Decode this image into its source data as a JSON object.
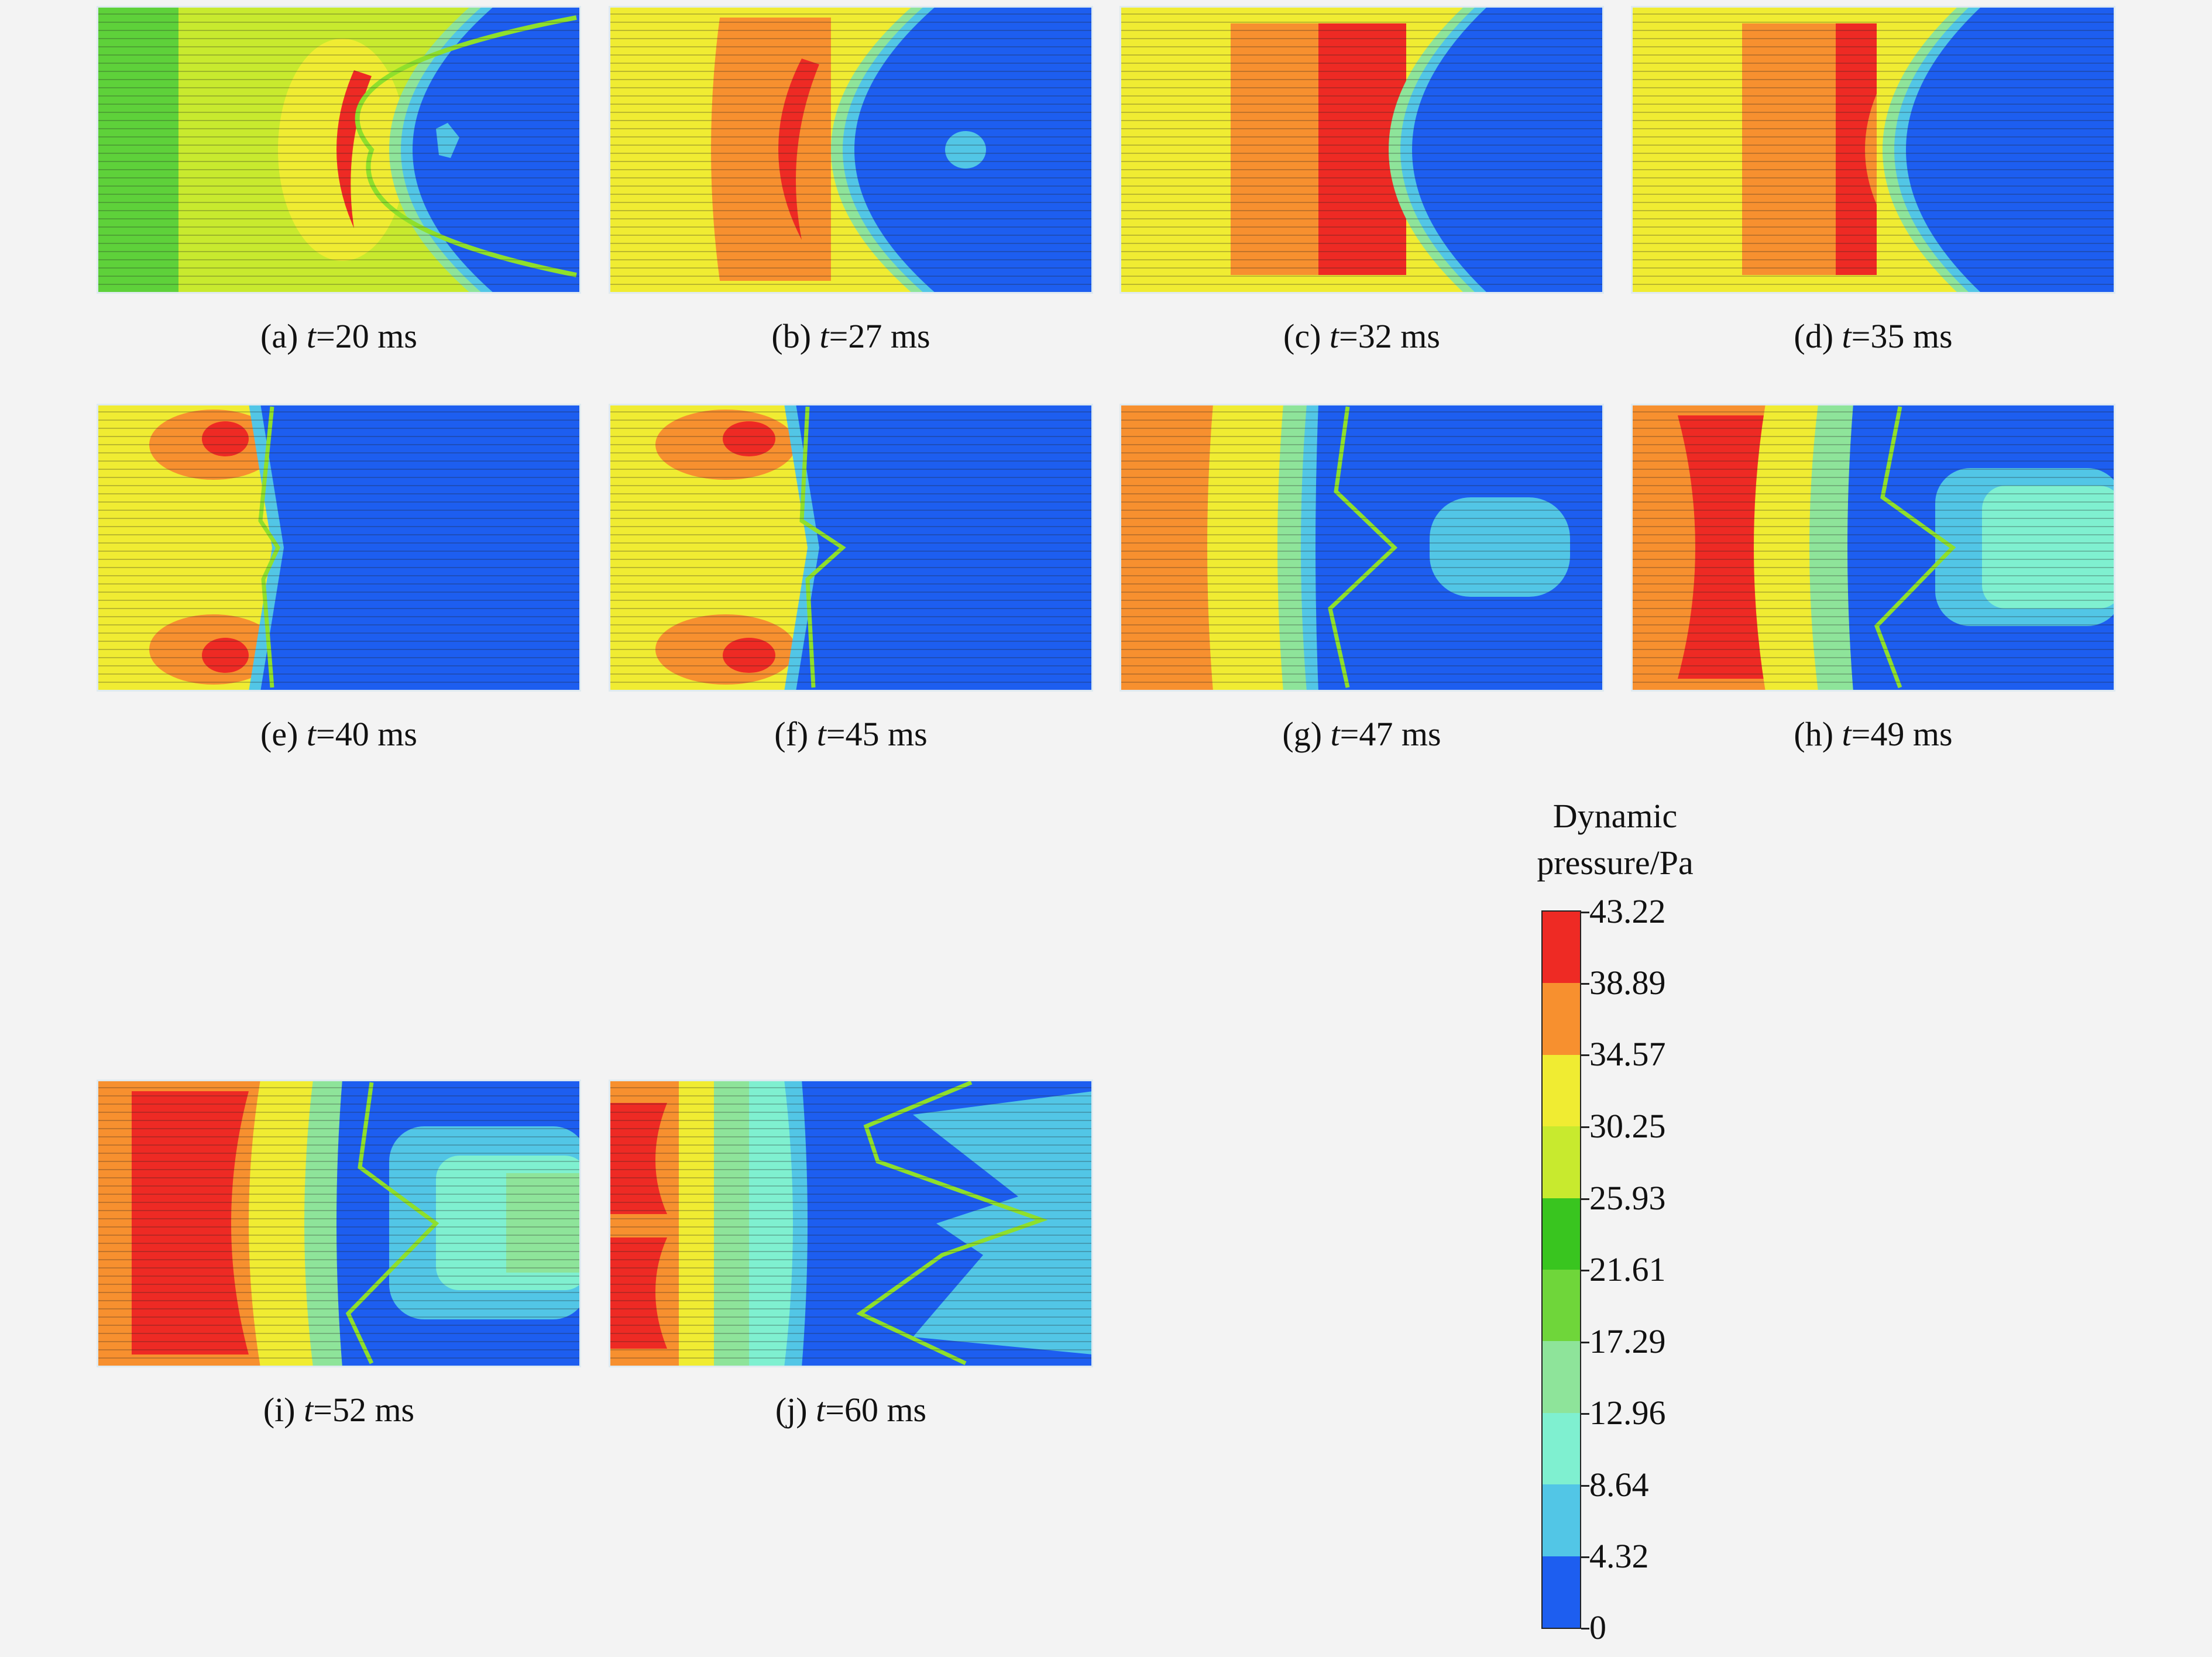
{
  "panels": [
    {
      "id": "a",
      "caption_prefix": "(a) ",
      "caption_var": "t",
      "caption_value": "=20 ms"
    },
    {
      "id": "b",
      "caption_prefix": "(b) ",
      "caption_var": "t",
      "caption_value": "=27 ms"
    },
    {
      "id": "c",
      "caption_prefix": "(c) ",
      "caption_var": "t",
      "caption_value": "=32 ms"
    },
    {
      "id": "d",
      "caption_prefix": "(d) ",
      "caption_var": "t",
      "caption_value": "=35 ms"
    },
    {
      "id": "e",
      "caption_prefix": "(e) ",
      "caption_var": "t",
      "caption_value": "=40 ms"
    },
    {
      "id": "f",
      "caption_prefix": "(f) ",
      "caption_var": "t",
      "caption_value": "=45 ms"
    },
    {
      "id": "g",
      "caption_prefix": "(g) ",
      "caption_var": "t",
      "caption_value": "=47 ms"
    },
    {
      "id": "h",
      "caption_prefix": "(h) ",
      "caption_var": "t",
      "caption_value": "=49 ms"
    },
    {
      "id": "i",
      "caption_prefix": "(i) ",
      "caption_var": "t",
      "caption_value": "=52 ms"
    },
    {
      "id": "j",
      "caption_prefix": "(j) ",
      "caption_var": "t",
      "caption_value": "=60 ms"
    }
  ],
  "legend": {
    "title_line1": "Dynamic",
    "title_line2": "pressure/Pa",
    "ticks": [
      "43.22",
      "38.89",
      "34.57",
      "30.25",
      "25.93",
      "21.61",
      "17.29",
      "12.96",
      "8.64",
      "4.32",
      "0"
    ],
    "colors": [
      "#ee2a24",
      "#f7902f",
      "#f0ec32",
      "#c8ea2e",
      "#39c51f",
      "#6fd63a",
      "#8ee49a",
      "#7ff0d0",
      "#52c6e6",
      "#1d5ef0"
    ]
  }
}
